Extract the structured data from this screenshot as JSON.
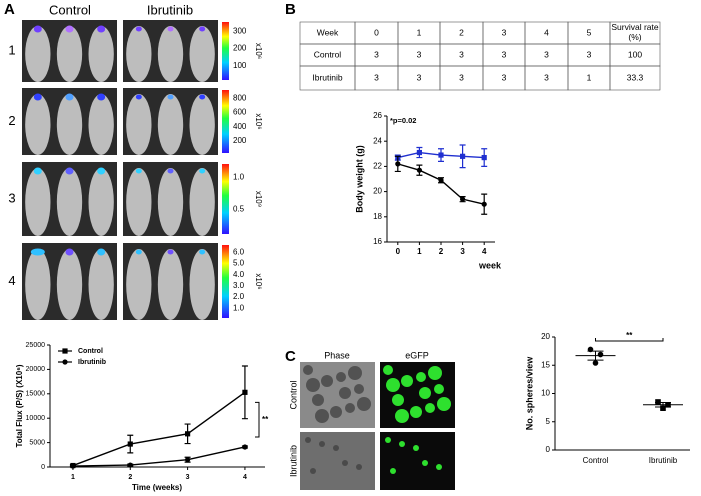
{
  "panel_labels": [
    "A",
    "B",
    "C"
  ],
  "panel_a": {
    "column_headers": [
      "Control",
      "Ibrutinib"
    ],
    "row_labels": [
      "1",
      "2",
      "3",
      "4"
    ],
    "colorbars": [
      {
        "ticks": [
          "300",
          "200",
          "100"
        ],
        "unit": "x10⁶"
      },
      {
        "ticks": [
          "800",
          "600",
          "400",
          "200"
        ],
        "unit": "x10⁶"
      },
      {
        "ticks": [
          "1.0",
          "0.5"
        ],
        "unit": "x10⁹"
      },
      {
        "ticks": [
          "6.0",
          "5.0",
          "4.0",
          "3.0",
          "2.0",
          "1.0"
        ],
        "unit": "x10⁶"
      }
    ]
  },
  "table": {
    "rows": [
      [
        "Week",
        0,
        1,
        2,
        3,
        4,
        5,
        "Survival rate (%)"
      ],
      [
        "Control",
        3,
        3,
        3,
        3,
        3,
        3,
        100
      ],
      [
        "Ibrutinib",
        3,
        3,
        3,
        3,
        3,
        1,
        33.3
      ]
    ]
  },
  "panel_c": {
    "column_headers": [
      "Phase",
      "eGFP"
    ],
    "row_labels": [
      "Control",
      "Ibrutinib"
    ]
  },
  "chart_data": [
    {
      "type": "line",
      "x_label": "Time (weeks)",
      "y_label": "Total Flux (P/S) (X10⁶)",
      "x": [
        1,
        2,
        3,
        4
      ],
      "xlim": [
        0.6,
        4.35
      ],
      "xticks": [
        1,
        2,
        3,
        4
      ],
      "ylim": [
        0,
        25000
      ],
      "yticks": [
        0,
        5000,
        10000,
        15000,
        20000,
        25000
      ],
      "legend": "upper left",
      "annotation": "**",
      "series": [
        {
          "name": "Control",
          "color": "#000000",
          "marker": "square",
          "values": [
            300,
            4700,
            6800,
            15300
          ],
          "errors": [
            200,
            1800,
            2000,
            5400
          ]
        },
        {
          "name": "Ibrutinib",
          "color": "#000000",
          "marker": "circle",
          "values": [
            200,
            400,
            1500,
            4100
          ],
          "errors": [
            100,
            200,
            500,
            200
          ]
        }
      ]
    },
    {
      "type": "line",
      "x_label": "week",
      "y_label": "Body weight (g)",
      "annotation": "*p=0.02",
      "x": [
        0,
        1,
        2,
        3,
        4
      ],
      "xlim": [
        -0.5,
        4.5
      ],
      "xticks": [
        0,
        1,
        2,
        3,
        4
      ],
      "ylim": [
        16,
        26
      ],
      "yticks": [
        16,
        18,
        20,
        22,
        24,
        26
      ],
      "series": [
        {
          "color": "#1f2fd0",
          "marker": "square",
          "values": [
            22.7,
            23.1,
            22.9,
            22.8,
            22.7
          ],
          "errors": [
            0.2,
            0.4,
            0.5,
            0.9,
            0.7
          ]
        },
        {
          "color": "#000000",
          "marker": "circle",
          "values": [
            22.2,
            21.7,
            20.9,
            19.4,
            19.0
          ],
          "errors": [
            0.6,
            0.4,
            0.2,
            0.2,
            0.8
          ]
        }
      ]
    },
    {
      "type": "dot",
      "y_label": "No. spheres/view",
      "annotation": "**",
      "categories": [
        "Control",
        "Ibrutinib"
      ],
      "ylim": [
        0,
        20
      ],
      "yticks": [
        0,
        5,
        10,
        15,
        20
      ],
      "values": [
        [
          17.8,
          16.9,
          15.4
        ],
        [
          8.5,
          8.0,
          7.4
        ]
      ],
      "means": [
        16.7,
        8.0
      ],
      "errors": [
        0.8,
        0.4
      ],
      "markers": [
        "circle",
        "square"
      ],
      "color": "#000000"
    }
  ]
}
